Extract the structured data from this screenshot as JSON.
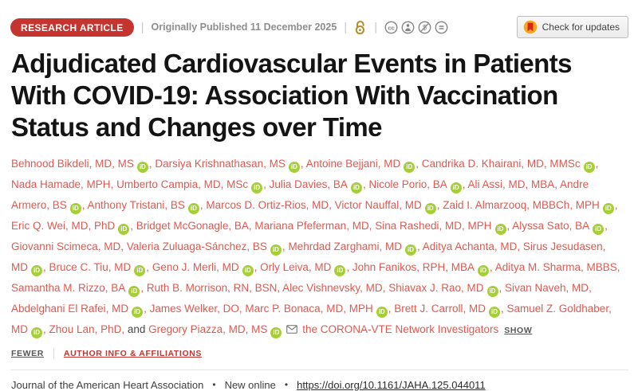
{
  "topbar": {
    "badge": "RESEARCH ARTICLE",
    "separator": "|",
    "published": "Originally Published 11 December 2025",
    "check_updates": "Check for updates",
    "icons": {
      "open_access": "open-access-lock",
      "license": [
        "cc",
        "by",
        "nc",
        "nd"
      ],
      "crossmark": "crossmark-circle"
    }
  },
  "title": "Adjudicated Cardiovascular Events in Patients With COVID-19: Association With Vaccination Status and Changes over Time",
  "author_block": {
    "conjunction": "and",
    "group_author": "the CORONA-VTE Network Investigators",
    "show_label": "SHOW",
    "icons": {
      "orcid": "orcid-id",
      "email": "envelope"
    }
  },
  "authors": [
    {
      "name": "Behnood Bikdeli, MD, MS",
      "orcid": true
    },
    {
      "name": "Darsiya Krishnathasan, MS",
      "orcid": true
    },
    {
      "name": "Antoine Bejjani, MD",
      "orcid": true
    },
    {
      "name": "Candrika D. Khairani, MD, MMSc",
      "orcid": true
    },
    {
      "name": "Nada Hamade, MPH",
      "orcid": false
    },
    {
      "name": "Umberto Campia, MD, MSc",
      "orcid": true
    },
    {
      "name": "Julia Davies, BA",
      "orcid": true
    },
    {
      "name": "Nicole Porio, BA",
      "orcid": true
    },
    {
      "name": "Ali Assi, MD, MBA",
      "orcid": false
    },
    {
      "name": "Andre Armero, BS",
      "orcid": true
    },
    {
      "name": "Anthony Tristani, BS",
      "orcid": true
    },
    {
      "name": "Marcos D. Ortiz-Rios, MD",
      "orcid": false
    },
    {
      "name": "Victor Nauffal, MD",
      "orcid": true
    },
    {
      "name": "Zaid I. Almarzooq, MBBCh, MPH",
      "orcid": true
    },
    {
      "name": "Eric Q. Wei, MD, PhD",
      "orcid": true
    },
    {
      "name": "Bridget McGonagle, BA",
      "orcid": false
    },
    {
      "name": "Mariana Pfeferman, MD",
      "orcid": false
    },
    {
      "name": "Sina Rashedi, MD, MPH",
      "orcid": true
    },
    {
      "name": "Alyssa Sato, BA",
      "orcid": true
    },
    {
      "name": "Giovanni Scimeca, MD",
      "orcid": false
    },
    {
      "name": "Valeria Zuluaga-Sánchez, BS",
      "orcid": true
    },
    {
      "name": "Mehrdad Zarghami, MD",
      "orcid": true
    },
    {
      "name": "Aditya Achanta, MD",
      "orcid": false
    },
    {
      "name": "Sirus Jesudasen, MD",
      "orcid": true
    },
    {
      "name": "Bruce C. Tiu, MD",
      "orcid": true
    },
    {
      "name": "Geno J. Merli, MD",
      "orcid": true
    },
    {
      "name": "Orly Leiva, MD",
      "orcid": true
    },
    {
      "name": "John Fanikos, RPH, MBA",
      "orcid": true
    },
    {
      "name": "Aditya M. Sharma, MBBS",
      "orcid": false
    },
    {
      "name": "Samantha M. Rizzo, BA",
      "orcid": true
    },
    {
      "name": "Ruth B. Morrison, RN, BSN",
      "orcid": false
    },
    {
      "name": "Alec Vishnevsky, MD",
      "orcid": false
    },
    {
      "name": "Shiavax J. Rao, MD",
      "orcid": true
    },
    {
      "name": "Sivan Naveh, MD",
      "orcid": false
    },
    {
      "name": "Abdelghani El Rafei, MD",
      "orcid": true
    },
    {
      "name": "James Welker, DO",
      "orcid": false
    },
    {
      "name": "Marc P. Bonaca, MD, MPH",
      "orcid": true
    },
    {
      "name": "Brett J. Carroll, MD",
      "orcid": true
    },
    {
      "name": "Samuel Z. Goldhaber, MD",
      "orcid": true
    },
    {
      "name": "Zhou Lan, PhD",
      "orcid": false
    },
    {
      "name": "Gregory Piazza, MD, MS",
      "orcid": true,
      "envelope": true
    }
  ],
  "links": {
    "fewer": "FEWER",
    "author_info": "AUTHOR INFO & AFFILIATIONS"
  },
  "footer": {
    "journal": "Journal of the American Heart Association",
    "bullet": "•",
    "status": "New online",
    "doi": "https://doi.org/10.1161/JAHA.125.044011"
  },
  "colors": {
    "badge_red": "#c5342e",
    "author_red": "#e4574e",
    "orcid_green": "#a6ce39",
    "gold": "#b3912f",
    "gray_text": "#8e8e8e"
  }
}
